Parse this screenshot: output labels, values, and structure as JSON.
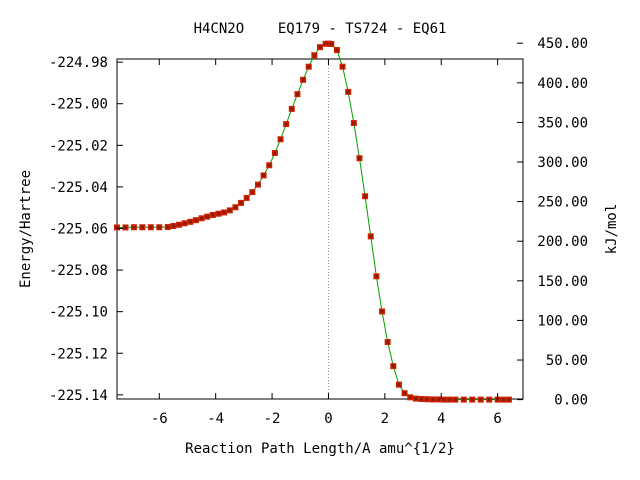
{
  "chart_data": {
    "type": "line",
    "title": "H4CN2O    EQ179 - TS724 - EQ61",
    "xlabel": "Reaction Path Length/A amu^{1/2}",
    "ylabel": "Energy/Hartree",
    "y2label": "kJ/mol",
    "xlim": [
      -7.5,
      6.9
    ],
    "ylim": [
      -225.142,
      -224.9785
    ],
    "x_ticks": [
      -6,
      -4,
      -2,
      0,
      2,
      4,
      6
    ],
    "x_tick_labels": [
      "-6",
      "-4",
      "-2",
      "0",
      "2",
      "4",
      "6"
    ],
    "y_ticks": [
      -224.98,
      -225.0,
      -225.02,
      -225.04,
      -225.06,
      -225.08,
      -225.1,
      -225.12,
      -225.14
    ],
    "y_tick_labels": [
      "-224.98",
      "-225.00",
      "-225.02",
      "-225.04",
      "-225.06",
      "-225.08",
      "-225.10",
      "-225.12",
      "-225.14"
    ],
    "y2_ticks": [
      450,
      400,
      350,
      300,
      250,
      200,
      150,
      100,
      50,
      0
    ],
    "y2_tick_labels": [
      "450.00",
      "400.00",
      "350.00",
      "300.00",
      "250.00",
      "200.00",
      "150.00",
      "100.00",
      "50.00",
      "0.00"
    ],
    "y2_zero_energy": -225.1423,
    "hartree_to_kj_per_mol": 2625.5,
    "ts_marker_x": 0,
    "grid": false,
    "colors": {
      "line": "#00a000",
      "marker": "#cc2200",
      "marker_core": "#8b1a00",
      "ts_line": "#999999"
    },
    "series": [
      {
        "x": [
          -7.5,
          -7.2,
          -6.9,
          -6.6,
          -6.3,
          -6.0,
          -5.7,
          -5.5,
          -5.3,
          -5.1,
          -4.9,
          -4.7,
          -4.5,
          -4.3,
          -4.1,
          -3.9,
          -3.7,
          -3.5,
          -3.3,
          -3.1,
          -2.9,
          -2.7,
          -2.5,
          -2.3,
          -2.1,
          -1.9,
          -1.7,
          -1.5,
          -1.3,
          -1.1,
          -0.9,
          -0.7,
          -0.5,
          -0.3,
          -0.1,
          0.0,
          0.1,
          0.3,
          0.5,
          0.7,
          0.9,
          1.1,
          1.3,
          1.5,
          1.7,
          1.9,
          2.1,
          2.3,
          2.5,
          2.7,
          2.9,
          3.1,
          3.3,
          3.5,
          3.7,
          3.9,
          4.1,
          4.3,
          4.5,
          4.8,
          5.1,
          5.4,
          5.7,
          6.0,
          6.2,
          6.4
        ],
        "y": [
          -225.0595,
          -225.0595,
          -225.0594,
          -225.0594,
          -225.0594,
          -225.0594,
          -225.0593,
          -225.0588,
          -225.0582,
          -225.0575,
          -225.0568,
          -225.056,
          -225.0551,
          -225.0543,
          -225.0535,
          -225.0529,
          -225.0523,
          -225.0513,
          -225.0498,
          -225.0477,
          -225.0453,
          -225.0425,
          -225.0389,
          -225.0345,
          -225.0296,
          -225.0237,
          -225.0171,
          -225.0098,
          -225.0025,
          -224.9954,
          -224.9885,
          -224.9822,
          -224.9767,
          -224.9728,
          -224.9712,
          -224.9711,
          -224.9713,
          -224.9742,
          -224.9822,
          -224.9943,
          -225.0093,
          -225.0262,
          -225.0445,
          -225.0638,
          -225.083,
          -225.0999,
          -225.1146,
          -225.1262,
          -225.1351,
          -225.1392,
          -225.1412,
          -225.1418,
          -225.142,
          -225.1421,
          -225.1422,
          -225.1422,
          -225.1423,
          -225.1423,
          -225.1423,
          -225.1423,
          -225.1423,
          -225.1423,
          -225.1423,
          -225.1423,
          -225.1423,
          -225.1423
        ]
      }
    ]
  }
}
